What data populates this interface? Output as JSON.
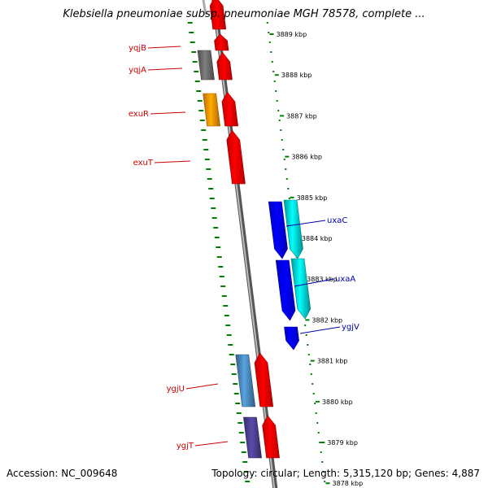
{
  "title": "Klebsiella pneumoniae subsp. pneumoniae MGH 78578, complete ...",
  "footer": {
    "accession": "Accession: NC_009648",
    "summary": "Topology: circular; Length: 5,315,120 bp; Genes: 4,887"
  },
  "colors": {
    "backbone": "#888888",
    "tick": "#008000",
    "left_label": "#cc0000",
    "right_label": "#0000aa"
  },
  "scale_labels": [
    "3889 kbp",
    "3888 kbp",
    "3887 kbp",
    "3886 kbp",
    "3885 kbp",
    "3884 kbp",
    "3883 kbp",
    "3882 kbp",
    "3881 kbp",
    "3880 kbp",
    "3879 kbp",
    "3878 kbp"
  ],
  "genes": [
    {
      "name": "",
      "color": "#ff0000",
      "strand": "forward"
    },
    {
      "name": "",
      "color": "#ff0000",
      "strand": "forward"
    },
    {
      "name": "",
      "color": "#666666",
      "strand": "forward"
    },
    {
      "name": "",
      "color": "#ff0000",
      "strand": "forward"
    },
    {
      "name": "",
      "color": "#ff8c00",
      "strand": "forward"
    },
    {
      "name": "",
      "color": "#ff0000",
      "strand": "forward"
    },
    {
      "name": "",
      "color": "#ff0000",
      "strand": "forward"
    },
    {
      "name": "",
      "color": "#0000ff",
      "strand": "reverse"
    },
    {
      "name": "",
      "color": "#00cccc",
      "strand": "reverse"
    },
    {
      "name": "",
      "color": "#0000ff",
      "strand": "reverse"
    },
    {
      "name": "",
      "color": "#00cccc",
      "strand": "reverse"
    },
    {
      "name": "",
      "color": "#0000ff",
      "strand": "reverse"
    },
    {
      "name": "",
      "color": "#4682b4",
      "strand": "forward"
    },
    {
      "name": "",
      "color": "#ff0000",
      "strand": "forward"
    },
    {
      "name": "",
      "color": "#483d8b",
      "strand": "forward"
    },
    {
      "name": "",
      "color": "#ff0000",
      "strand": "forward"
    }
  ],
  "gene_labels": [
    {
      "text": "yqjB",
      "side": "left"
    },
    {
      "text": "yqjA",
      "side": "left"
    },
    {
      "text": "exuR",
      "side": "left"
    },
    {
      "text": "exuT",
      "side": "left"
    },
    {
      "text": "uxaC",
      "side": "right"
    },
    {
      "text": "uxaA",
      "side": "right"
    },
    {
      "text": "ygjV",
      "side": "right"
    },
    {
      "text": "ygjU",
      "side": "left"
    },
    {
      "text": "ygjT",
      "side": "left"
    }
  ]
}
